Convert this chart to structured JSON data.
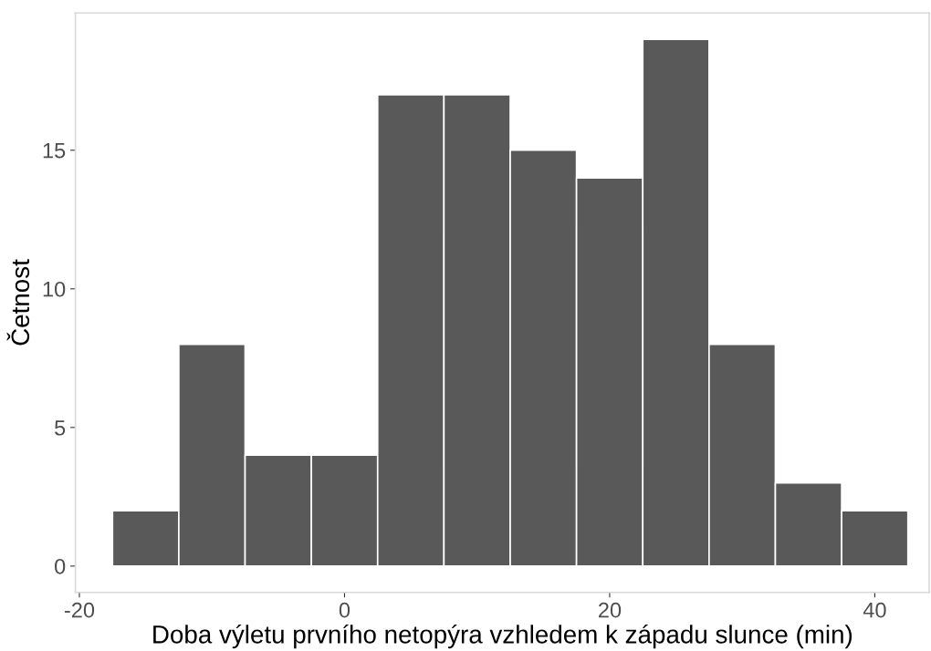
{
  "chart_data": {
    "type": "histogram",
    "xlabel": "Doba výletu prvního netopýra vzhledem k západu slunce (min)",
    "ylabel": "Četnost",
    "bins": [
      -17.5,
      -12.5,
      -7.5,
      -2.5,
      2.5,
      7.5,
      12.5,
      17.5,
      22.5,
      27.5,
      32.5,
      37.5,
      42.5
    ],
    "values": [
      2,
      8,
      4,
      4,
      17,
      17,
      15,
      14,
      19,
      8,
      3,
      2
    ],
    "color": "#595959",
    "xlim": [
      -20.3,
      44.1
    ],
    "xticks": [
      -20,
      0,
      20,
      40
    ],
    "ylim": [
      -0.95,
      19.95
    ],
    "yticks": [
      0,
      5,
      10,
      15
    ],
    "grid": false
  }
}
